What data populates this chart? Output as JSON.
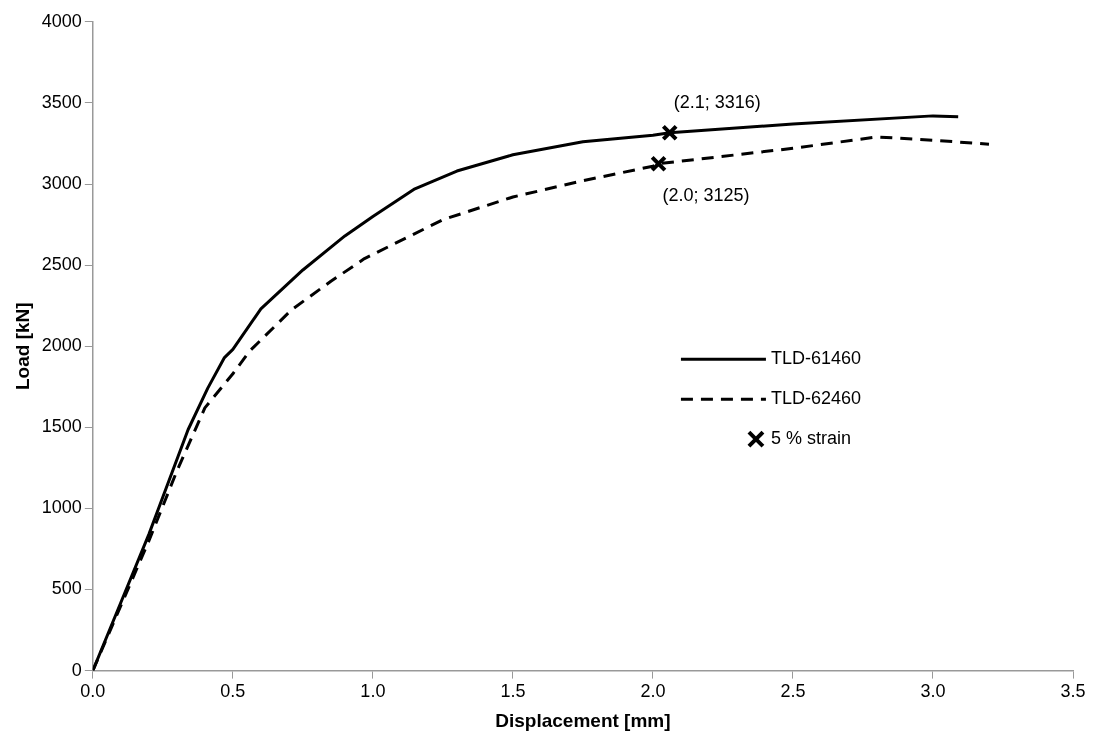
{
  "chart_data": {
    "type": "line",
    "xlabel": "Displacement [mm]",
    "ylabel": "Load [kN]",
    "xlim": [
      0,
      3.5
    ],
    "xticks": [
      {
        "value": 0,
        "label": "0.0"
      },
      {
        "value": 0.5,
        "label": "0.5"
      },
      {
        "value": 1,
        "label": "1.0"
      },
      {
        "value": 1.5,
        "label": "1.5"
      },
      {
        "value": 2,
        "label": "2.0"
      },
      {
        "value": 2.5,
        "label": "2.5"
      },
      {
        "value": 3,
        "label": "3.0"
      },
      {
        "value": 3.5,
        "label": "3.5"
      }
    ],
    "ylim": [
      0,
      4000
    ],
    "yticks": [
      0,
      500,
      1000,
      1500,
      2000,
      2500,
      3000,
      3500,
      4000
    ],
    "grid": false,
    "legend": "center right",
    "series": [
      {
        "name": "TLD-61460",
        "color": "#000000",
        "line_style": "solid",
        "marker": "none",
        "x": [
          0,
          0.1,
          0.2,
          0.34,
          0.41,
          0.47,
          0.5,
          0.6,
          0.75,
          0.9,
          1.0,
          1.15,
          1.3,
          1.5,
          1.75,
          2.0,
          2.06,
          2.5,
          3.0,
          3.09
        ],
        "values": [
          0,
          420,
          840,
          1485,
          1740,
          1930,
          1980,
          2230,
          2470,
          2680,
          2800,
          2970,
          3080,
          3180,
          3260,
          3300,
          3316,
          3370,
          3420,
          3415
        ]
      },
      {
        "name": "TLD-62460",
        "color": "#000000",
        "line_style": "dashed",
        "marker": "none",
        "x": [
          0,
          0.1,
          0.2,
          0.3,
          0.4,
          0.5,
          0.56,
          0.71,
          0.85,
          0.97,
          1.25,
          1.5,
          1.75,
          2.0,
          2.02,
          2.5,
          2.8,
          3.0,
          3.2
        ],
        "values": [
          0,
          400,
          800,
          1230,
          1620,
          1830,
          1970,
          2225,
          2400,
          2540,
          2780,
          2920,
          3020,
          3110,
          3125,
          3220,
          3290,
          3270,
          3245
        ]
      },
      {
        "name": "5 % strain",
        "type": "scatter",
        "color": "#000000",
        "marker": "cross",
        "x": [
          2.06,
          2.02
        ],
        "values": [
          3316,
          3125
        ]
      }
    ],
    "annotations": [
      {
        "text": "(2.1; 3316)",
        "x": 2.06,
        "y": 3316
      },
      {
        "text": "(2.0; 3125)",
        "x": 2.02,
        "y": 3125
      }
    ]
  }
}
